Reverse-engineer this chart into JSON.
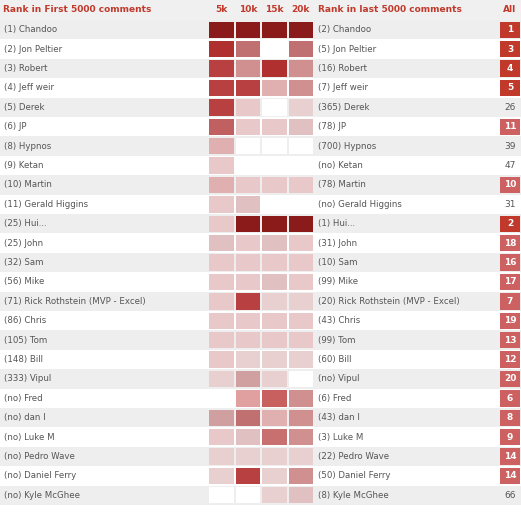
{
  "names": [
    "(1) Chandoo",
    "(2) Jon Peltier",
    "(3) Robert",
    "(4) Jeff weir",
    "(5) Derek",
    "(6) JP",
    "(8) Hypnos",
    "(9) Ketan",
    "(10) Martin",
    "(11) Gerald Higgins",
    "(25) Hui...",
    "(25) John",
    "(32) Sam",
    "(56) Mike",
    "(71) Rick Rothstein (MVP - Excel)",
    "(86) Chris",
    "(105) Tom",
    "(148) Bill",
    "(333) Vipul",
    "(no) Fred",
    "(no) dan I",
    "(no) Luke M",
    "(no) Pedro Wave",
    "(no) Daniel Ferry",
    "(no) Kyle McGhee"
  ],
  "right_labels": [
    "(2) Chandoo",
    "(5) Jon Peltier",
    "(16) Robert",
    "(7) Jeff weir",
    "(365) Derek",
    "(78) JP",
    "(700) Hypnos",
    "(no) Ketan",
    "(78) Martin",
    "(no) Gerald Higgins",
    "(1) Hui...",
    "(31) John",
    "(10) Sam",
    "(99) Mike",
    "(20) Rick Rothstein (MVP - Excel)",
    "(43) Chris",
    "(99) Tom",
    "(60) Bill",
    "(no) Vipul",
    "(6) Fred",
    "(43) dan I",
    "(3) Luke M",
    "(22) Pedro Wave",
    "(50) Daniel Ferry",
    "(8) Kyle McGhee"
  ],
  "all_values": [
    1,
    3,
    4,
    5,
    26,
    11,
    39,
    47,
    10,
    31,
    2,
    18,
    16,
    17,
    7,
    19,
    13,
    12,
    20,
    6,
    8,
    9,
    14,
    14,
    66
  ],
  "heatmap_colors": [
    [
      "#8b1a1a",
      "#8b1a1a",
      "#8b1a1a",
      "#8b1a1a"
    ],
    [
      "#b03030",
      "#c07070",
      "#ffffff",
      "#c07070"
    ],
    [
      "#b84040",
      "#d09090",
      "#b03030",
      "#d09090"
    ],
    [
      "#b84040",
      "#b84040",
      "#e0b0b0",
      "#d09090"
    ],
    [
      "#b84040",
      "#e8c8c8",
      "#ffffff",
      "#e8d0d0"
    ],
    [
      "#c06060",
      "#e8c8c8",
      "#e8c8c8",
      "#e0c0c0"
    ],
    [
      "#e0b0b0",
      "#ffffff",
      "#ffffff",
      "#ffffff"
    ],
    [
      "#e8c8c8",
      "#ffffff",
      "#ffffff",
      "#ffffff"
    ],
    [
      "#e0b0b0",
      "#e8c8c8",
      "#e8c8c8",
      "#e8c8c8"
    ],
    [
      "#e8c8c8",
      "#e0c0c0",
      "#ffffff",
      "#ffffff"
    ],
    [
      "#e8c8c8",
      "#8b1a1a",
      "#8b1a1a",
      "#8b1a1a"
    ],
    [
      "#e0c0c0",
      "#e8c8c8",
      "#e0c0c0",
      "#e8c8c8"
    ],
    [
      "#e8c8c8",
      "#e8c8c8",
      "#e8c8c8",
      "#e8c8c8"
    ],
    [
      "#e8c8c8",
      "#e8c8c8",
      "#e0c0c0",
      "#e8c8c8"
    ],
    [
      "#e8c8c8",
      "#b84040",
      "#e8d0d0",
      "#e8d0d0"
    ],
    [
      "#e8c8c8",
      "#e8c8c8",
      "#e8c8c8",
      "#e8c8c8"
    ],
    [
      "#e8c8c8",
      "#e8c8c8",
      "#e8c8c8",
      "#e8c8c8"
    ],
    [
      "#e8c8c8",
      "#e8d0d0",
      "#e8d0d0",
      "#e8d0d0"
    ],
    [
      "#e8d0d0",
      "#d0a0a0",
      "#e8d0d0",
      "#ffffff"
    ],
    [
      "#ffffff",
      "#e0a0a0",
      "#c86060",
      "#d09090"
    ],
    [
      "#d0a0a0",
      "#c07070",
      "#e0b0b0",
      "#d09090"
    ],
    [
      "#e8c8c8",
      "#e0c0c0",
      "#c87070",
      "#d09090"
    ],
    [
      "#e8d0d0",
      "#e8d0d0",
      "#e8d0d0",
      "#e8d0d0"
    ],
    [
      "#e8d0d0",
      "#b84040",
      "#e8d0d0",
      "#d09090"
    ],
    [
      "#ffffff",
      "#ffffff",
      "#e8d0d0",
      "#e0c0c0"
    ]
  ],
  "all_red_bg": [
    1,
    3,
    4,
    5,
    11,
    10,
    2,
    18,
    16,
    17,
    7,
    19,
    13,
    12,
    20,
    6,
    8,
    9,
    14,
    14
  ],
  "col_headers": [
    "5k",
    "10k",
    "15k",
    "20k"
  ],
  "header_left": "Rank in First 5000 comments",
  "header_right": "Rank in last 5000 comments",
  "header_all": "All",
  "bg_color_odd": "#eeeeee",
  "bg_color_even": "#ffffff",
  "text_color_header": "#c0392b",
  "text_color_name": "#555555",
  "fig_width": 5.21,
  "fig_height": 5.29,
  "dpi": 100
}
